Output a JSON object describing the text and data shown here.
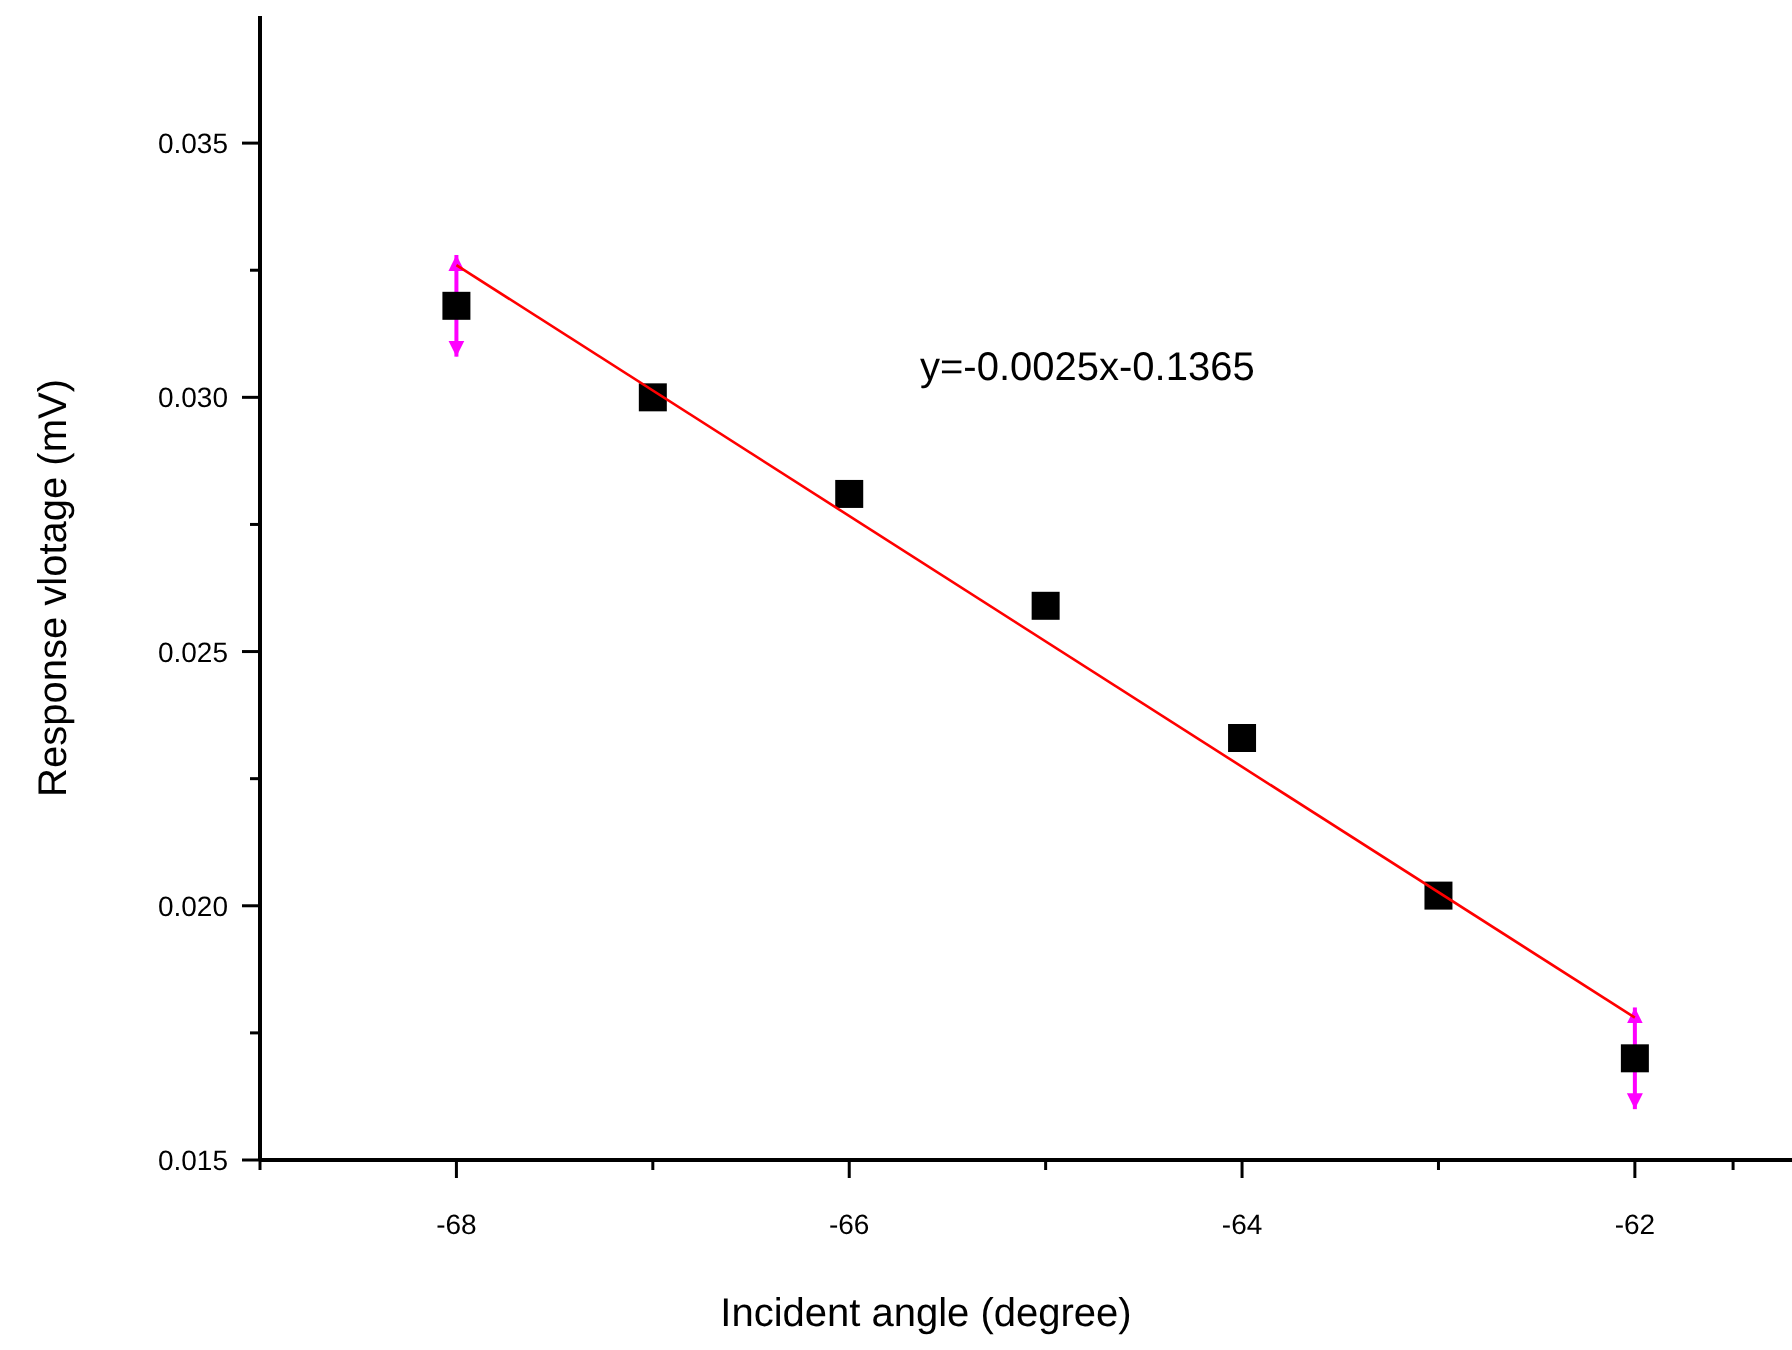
{
  "chart_data": {
    "type": "scatter",
    "xlabel": "Incident angle (degree)",
    "ylabel": "Response vlotage (mV)",
    "annotations": [
      "y=-0.0025x-0.1365"
    ],
    "xlim": [
      -69,
      -61.2
    ],
    "ylim": [
      0.015,
      0.0375
    ],
    "xticks": [
      {
        "value": -69,
        "label": null
      },
      -68,
      {
        "value": -67,
        "label": null
      },
      -66,
      {
        "value": -65,
        "label": null
      },
      -64,
      {
        "value": -63,
        "label": null
      },
      -62,
      {
        "value": -61.5,
        "label": null
      }
    ],
    "yticks": [
      0.015,
      {
        "value": 0.0175,
        "label": null
      },
      {
        "value": 0.02,
        "label": "0.020"
      },
      {
        "value": 0.0225,
        "label": null
      },
      0.025,
      {
        "value": 0.0275,
        "label": null
      },
      {
        "value": 0.03,
        "label": "0.030"
      },
      {
        "value": 0.0325,
        "label": null
      },
      0.035
    ],
    "grid": false,
    "legend": false,
    "series": [
      {
        "color": "#000000",
        "marker": "square",
        "x": [
          -68,
          -67,
          -66,
          -65,
          -64,
          -63,
          -62
        ],
        "values": [
          0.0318,
          0.03,
          0.0281,
          0.0259,
          0.0233,
          0.0202,
          0.017
        ],
        "errors": [
          0.001,
          null,
          null,
          null,
          null,
          null,
          0.001
        ]
      },
      {
        "type": "line",
        "color": "#ff0000",
        "marker": "none",
        "line_style": "solid",
        "x": [
          -68,
          -62
        ],
        "values": [
          0.0326,
          0.0178
        ]
      }
    ]
  }
}
